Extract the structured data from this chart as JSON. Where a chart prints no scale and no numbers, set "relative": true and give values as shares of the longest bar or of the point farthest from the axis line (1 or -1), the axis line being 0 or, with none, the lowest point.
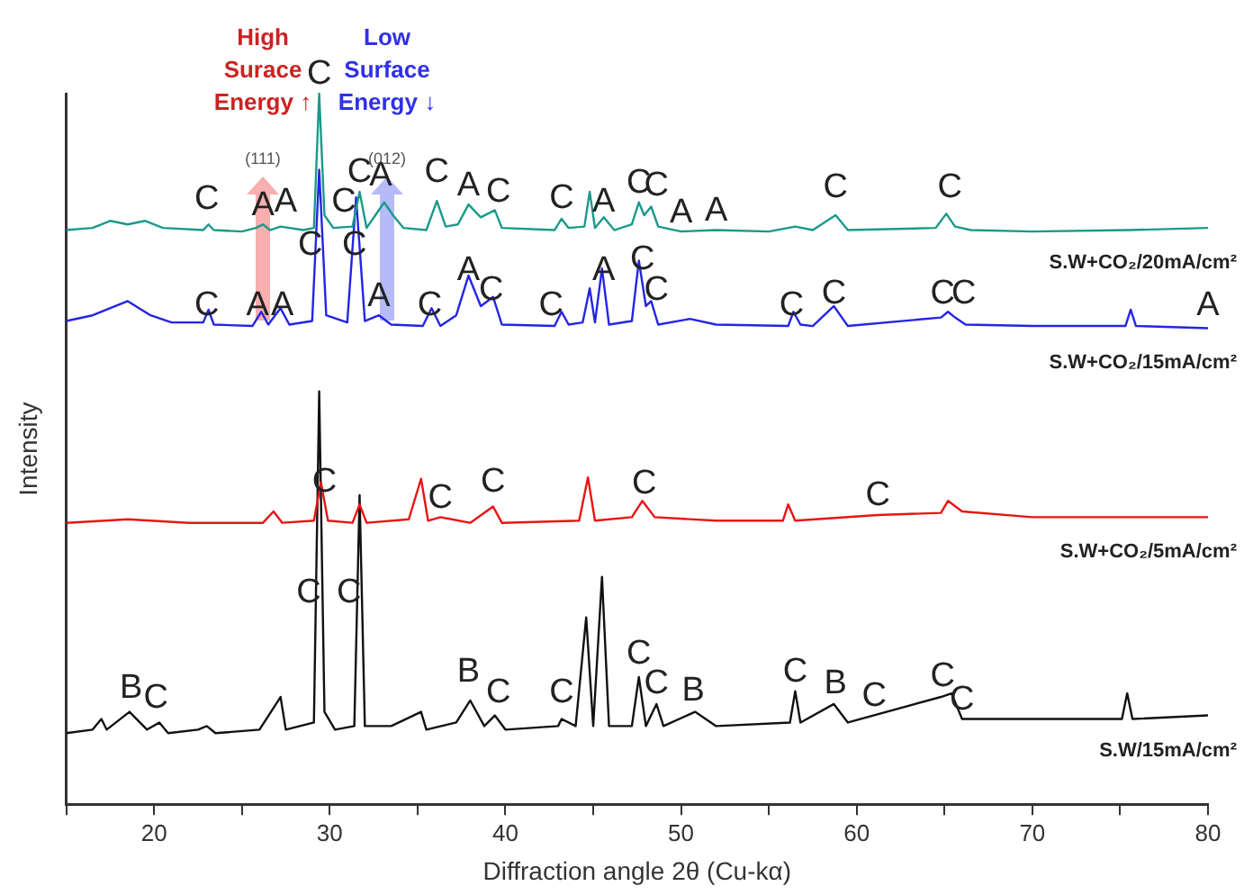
{
  "chart_data": {
    "type": "line",
    "relative": true,
    "xlabel": "Diffraction angle 2θ (Cu-kα)",
    "ylabel": "Intensity",
    "xlim": [
      15,
      80
    ],
    "xticks": [
      {
        "value": 15,
        "label": null
      },
      20,
      {
        "value": 25,
        "label": null
      },
      30,
      {
        "value": 35,
        "label": null
      },
      40,
      {
        "value": 45,
        "label": null
      },
      50,
      {
        "value": 55,
        "label": null
      },
      60,
      {
        "value": 65,
        "label": null
      },
      70,
      {
        "value": 75,
        "label": null
      },
      80
    ],
    "grid": false,
    "legend": false,
    "marker": "none",
    "line_style": "solid",
    "series": [
      {
        "name": "S.W+CO₂/20mA/cm²",
        "color": "#1a9a8a",
        "x": [
          15,
          16.5,
          17.5,
          18.5,
          19.5,
          20.5,
          22.8,
          23.1,
          23.4,
          25,
          25.8,
          26.2,
          26.6,
          27.2,
          28.5,
          29.1,
          29.4,
          29.7,
          30.2,
          31.3,
          31.7,
          32.1,
          32.6,
          33.1,
          33.6,
          34.2,
          35.5,
          36.1,
          36.6,
          37.3,
          37.9,
          38.6,
          39.4,
          39.8,
          42.8,
          43.2,
          43.6,
          44.5,
          44.8,
          45.1,
          45.6,
          46.2,
          47.2,
          47.6,
          47.9,
          48.3,
          48.7,
          50,
          52,
          55,
          56.5,
          57.5,
          58.8,
          59.5,
          64.5,
          65.1,
          65.6,
          66.5,
          70,
          75.5,
          80
        ],
        "values": [
          0.808,
          0.811,
          0.821,
          0.816,
          0.821,
          0.811,
          0.808,
          0.816,
          0.808,
          0.806,
          0.811,
          0.816,
          0.808,
          0.813,
          0.808,
          0.811,
          1,
          0.829,
          0.811,
          0.813,
          0.862,
          0.811,
          0.829,
          0.847,
          0.829,
          0.811,
          0.808,
          0.849,
          0.813,
          0.816,
          0.844,
          0.826,
          0.836,
          0.811,
          0.808,
          0.824,
          0.811,
          0.813,
          0.862,
          0.811,
          0.826,
          0.808,
          0.816,
          0.847,
          0.829,
          0.841,
          0.813,
          0.806,
          0.808,
          0.806,
          0.813,
          0.808,
          0.829,
          0.808,
          0.811,
          0.831,
          0.813,
          0.808,
          0.806,
          0.808,
          0.811
        ]
      },
      {
        "name": "S.W+CO₂/15mA/cm²",
        "color": "#2424e6",
        "x": [
          15,
          16.5,
          18.5,
          19.8,
          21,
          22.8,
          23.1,
          23.4,
          25.6,
          26.1,
          26.5,
          27.2,
          27.7,
          29,
          29.4,
          29.8,
          31,
          31.5,
          32,
          32.8,
          33.5,
          35.3,
          35.8,
          36.3,
          37.2,
          37.9,
          38.6,
          39.3,
          39.8,
          42.8,
          43.2,
          43.6,
          44.4,
          44.8,
          45.1,
          45.5,
          45.9,
          47.2,
          47.6,
          48,
          48.3,
          48.7,
          50.5,
          52,
          56.1,
          56.4,
          56.8,
          57.5,
          58.7,
          59.5,
          64.8,
          65.2,
          65.6,
          66.2,
          70,
          75.3,
          75.6,
          75.9,
          80
        ],
        "values": [
          0.68,
          0.688,
          0.708,
          0.688,
          0.678,
          0.678,
          0.696,
          0.675,
          0.673,
          0.693,
          0.675,
          0.698,
          0.675,
          0.68,
          0.893,
          0.688,
          0.678,
          0.854,
          0.68,
          0.688,
          0.675,
          0.673,
          0.698,
          0.673,
          0.688,
          0.744,
          0.701,
          0.714,
          0.675,
          0.673,
          0.693,
          0.675,
          0.678,
          0.726,
          0.678,
          0.754,
          0.675,
          0.68,
          0.765,
          0.701,
          0.708,
          0.675,
          0.683,
          0.675,
          0.673,
          0.693,
          0.675,
          0.673,
          0.701,
          0.673,
          0.685,
          0.693,
          0.685,
          0.675,
          0.673,
          0.673,
          0.696,
          0.673,
          0.67
        ]
      },
      {
        "name": "S.W+CO₂/5mA/cm²",
        "color": "#e81414",
        "x": [
          15,
          18.5,
          22,
          26.2,
          26.8,
          27.3,
          29.1,
          29.5,
          29.9,
          31.3,
          31.7,
          32.1,
          34.5,
          35.2,
          35.6,
          36.3,
          38,
          39.3,
          39.8,
          44.2,
          44.7,
          45.1,
          47.2,
          47.8,
          48.5,
          52,
          55.8,
          56.1,
          56.5,
          61.2,
          64.8,
          65.2,
          66,
          70,
          75,
          80
        ],
        "values": [
          0.396,
          0.401,
          0.396,
          0.396,
          0.412,
          0.396,
          0.399,
          0.453,
          0.399,
          0.396,
          0.422,
          0.396,
          0.401,
          0.458,
          0.399,
          0.404,
          0.396,
          0.419,
          0.396,
          0.399,
          0.46,
          0.399,
          0.404,
          0.427,
          0.404,
          0.399,
          0.399,
          0.422,
          0.399,
          0.407,
          0.41,
          0.427,
          0.412,
          0.404,
          0.404,
          0.404
        ]
      },
      {
        "name": "S.W/15mA/cm²",
        "color": "#111111",
        "x": [
          15,
          16.5,
          17,
          17.3,
          18.6,
          19.6,
          20.3,
          20.8,
          22.5,
          23,
          23.5,
          26,
          27.2,
          27.5,
          29.1,
          29.4,
          29.7,
          30.3,
          31.4,
          31.7,
          32,
          33.5,
          35.2,
          35.5,
          37.2,
          38,
          38.8,
          39.4,
          40,
          43,
          43.2,
          44,
          44.6,
          45,
          45.5,
          45.9,
          47.2,
          47.6,
          48,
          48.6,
          49,
          50.8,
          52,
          56.2,
          56.5,
          56.8,
          58.7,
          59.5,
          64.8,
          65.4,
          66,
          70,
          75.1,
          75.4,
          75.7,
          80
        ],
        "values": [
          0.1,
          0.105,
          0.12,
          0.105,
          0.13,
          0.105,
          0.115,
          0.1,
          0.105,
          0.11,
          0.1,
          0.105,
          0.151,
          0.105,
          0.115,
          0.581,
          0.13,
          0.105,
          0.11,
          0.435,
          0.11,
          0.11,
          0.13,
          0.105,
          0.115,
          0.146,
          0.11,
          0.125,
          0.105,
          0.11,
          0.12,
          0.11,
          0.263,
          0.11,
          0.32,
          0.11,
          0.11,
          0.179,
          0.11,
          0.141,
          0.11,
          0.13,
          0.11,
          0.115,
          0.159,
          0.115,
          0.141,
          0.115,
          0.151,
          0.156,
          0.12,
          0.12,
          0.12,
          0.156,
          0.12,
          0.125
        ]
      }
    ],
    "annotations": [
      "High Surace Energy ↑",
      "Low Surface Energy ↓",
      "(111)",
      "(012)",
      {
        "text": "C",
        "x": 23,
        "y": 0.824
      },
      {
        "text": "A",
        "x": 26.2,
        "y": 0.816
      },
      {
        "text": "A",
        "x": 27.5,
        "y": 0.821
      },
      {
        "text": "C",
        "x": 29.4,
        "y": 1
      },
      {
        "text": "C",
        "x": 30.8,
        "y": 0.821
      },
      {
        "text": "C",
        "x": 31.7,
        "y": 0.862
      },
      {
        "text": "A",
        "x": 32.9,
        "y": 0.857
      },
      {
        "text": "C",
        "x": 36.1,
        "y": 0.862
      },
      {
        "text": "A",
        "x": 37.9,
        "y": 0.844
      },
      {
        "text": "C",
        "x": 39.6,
        "y": 0.834
      },
      {
        "text": "C",
        "x": 43.2,
        "y": 0.826
      },
      {
        "text": "A",
        "x": 45.6,
        "y": 0.821
      },
      {
        "text": "C",
        "x": 47.6,
        "y": 0.847
      },
      {
        "text": "C",
        "x": 48.6,
        "y": 0.844
      },
      {
        "text": "A",
        "x": 50,
        "y": 0.806
      },
      {
        "text": "A",
        "x": 52,
        "y": 0.808
      },
      {
        "text": "C",
        "x": 58.8,
        "y": 0.841
      },
      {
        "text": "C",
        "x": 65.3,
        "y": 0.841
      },
      {
        "text": "C",
        "x": 23,
        "y": 0.675
      },
      {
        "text": "A",
        "x": 25.9,
        "y": 0.675
      },
      {
        "text": "A",
        "x": 27.3,
        "y": 0.675
      },
      {
        "text": "C",
        "x": 28.9,
        "y": 0.76
      },
      {
        "text": "C",
        "x": 31.4,
        "y": 0.76
      },
      {
        "text": "A",
        "x": 32.8,
        "y": 0.688
      },
      {
        "text": "C",
        "x": 35.7,
        "y": 0.675
      },
      {
        "text": "A",
        "x": 37.9,
        "y": 0.724
      },
      {
        "text": "C",
        "x": 39.2,
        "y": 0.696
      },
      {
        "text": "C",
        "x": 42.6,
        "y": 0.675
      },
      {
        "text": "A",
        "x": 45.6,
        "y": 0.724
      },
      {
        "text": "C",
        "x": 47.8,
        "y": 0.739
      },
      {
        "text": "C",
        "x": 48.6,
        "y": 0.696
      },
      {
        "text": "C",
        "x": 56.3,
        "y": 0.675
      },
      {
        "text": "C",
        "x": 58.7,
        "y": 0.691
      },
      {
        "text": "C",
        "x": 64.9,
        "y": 0.691
      },
      {
        "text": "C",
        "x": 66.1,
        "y": 0.691
      },
      {
        "text": "A",
        "x": 80,
        "y": 0.675
      },
      {
        "text": "C",
        "x": 29.7,
        "y": 0.426
      },
      {
        "text": "C",
        "x": 36.3,
        "y": 0.404
      },
      {
        "text": "C",
        "x": 39.3,
        "y": 0.427
      },
      {
        "text": "C",
        "x": 47.9,
        "y": 0.424
      },
      {
        "text": "C",
        "x": 61.2,
        "y": 0.407
      },
      {
        "text": "B",
        "x": 18.7,
        "y": 0.136
      },
      {
        "text": "C",
        "x": 20.1,
        "y": 0.123
      },
      {
        "text": "C",
        "x": 28.8,
        "y": 0.271
      },
      {
        "text": "C",
        "x": 31.1,
        "y": 0.271
      },
      {
        "text": "B",
        "x": 37.9,
        "y": 0.159
      },
      {
        "text": "C",
        "x": 39.6,
        "y": 0.13
      },
      {
        "text": "C",
        "x": 43.2,
        "y": 0.13
      },
      {
        "text": "C",
        "x": 47.6,
        "y": 0.184
      },
      {
        "text": "C",
        "x": 48.6,
        "y": 0.143
      },
      {
        "text": "B",
        "x": 50.7,
        "y": 0.133
      },
      {
        "text": "C",
        "x": 56.5,
        "y": 0.159
      },
      {
        "text": "B",
        "x": 58.8,
        "y": 0.143
      },
      {
        "text": "C",
        "x": 61,
        "y": 0.125
      },
      {
        "text": "C",
        "x": 64.9,
        "y": 0.153
      },
      {
        "text": "C",
        "x": 66,
        "y": 0.12
      }
    ]
  }
}
